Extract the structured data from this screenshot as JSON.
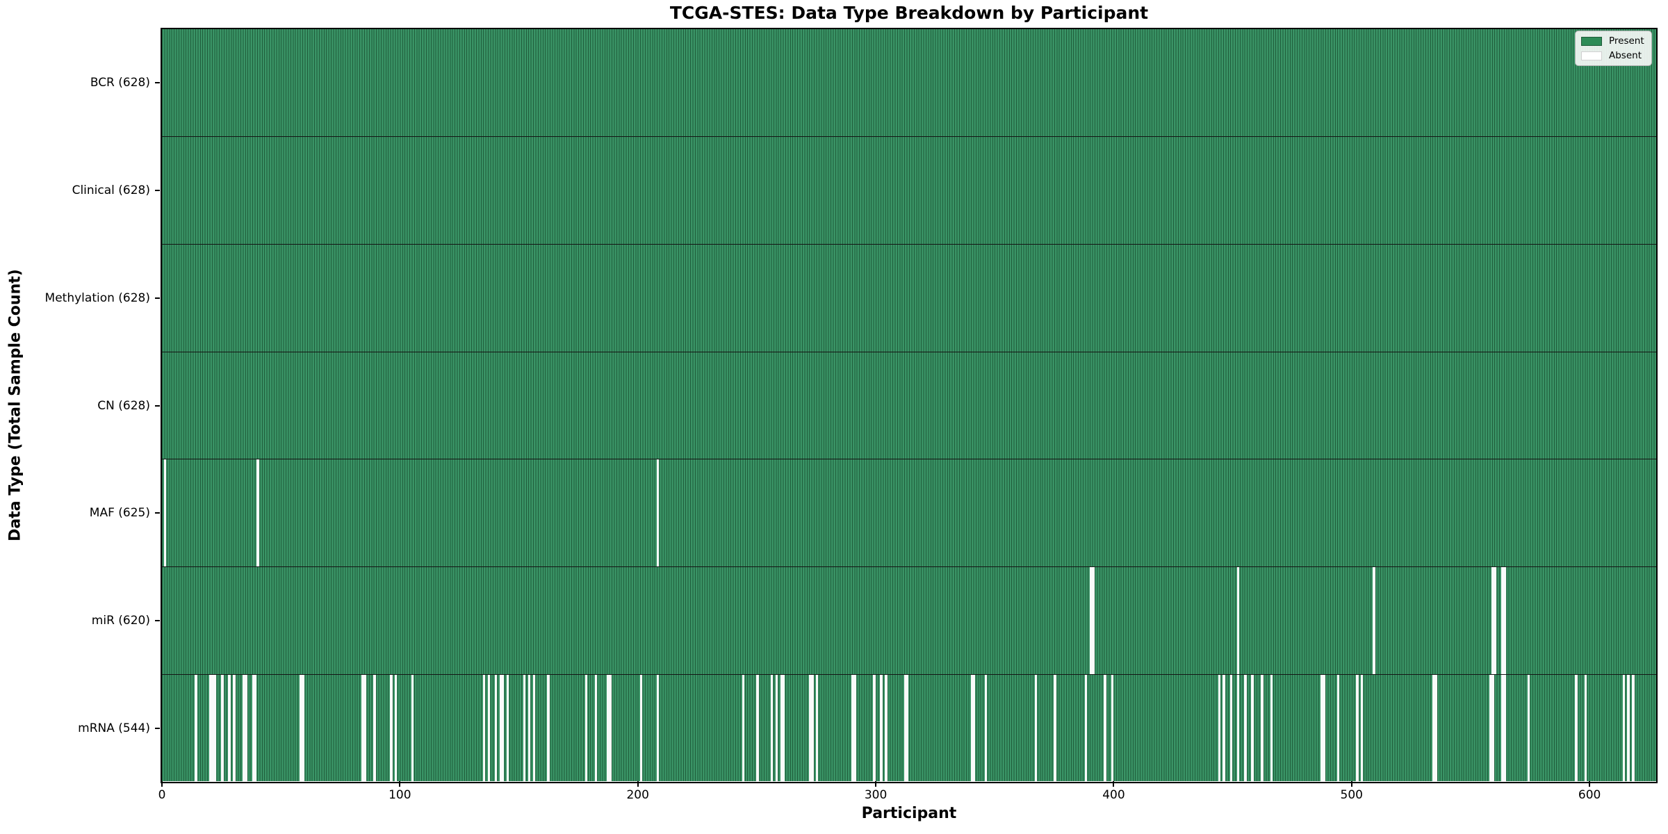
{
  "title": "TCGA-STES: Data Type Breakdown by Participant",
  "xlabel": "Participant",
  "ylabel": "Data Type (Total Sample Count)",
  "legend": {
    "present_label": "Present",
    "absent_label": "Absent"
  },
  "colors": {
    "present_fill": "#3a9466",
    "present_edge": "#1f5c3a",
    "present_legend": "#2e8b57",
    "absent": "#fafafa",
    "background": "#ffffff",
    "spine": "#000000"
  },
  "chart_data": {
    "type": "heatmap",
    "title": "TCGA-STES: Data Type Breakdown by Participant",
    "xlabel": "Participant",
    "ylabel": "Data Type (Total Sample Count)",
    "legend_entries": [
      "Present",
      "Absent"
    ],
    "legend_position": "upper right",
    "n_participants": 628,
    "x_range": [
      0,
      628
    ],
    "x_ticks": [
      0,
      100,
      200,
      300,
      400,
      500,
      600
    ],
    "cell_states": [
      "present",
      "absent"
    ],
    "rows": [
      {
        "name": "BCR",
        "label": "BCR (628)",
        "count": 628,
        "absent": []
      },
      {
        "name": "Clinical",
        "label": "Clinical (628)",
        "count": 628,
        "absent": []
      },
      {
        "name": "Methylation",
        "label": "Methylation (628)",
        "count": 628,
        "absent": []
      },
      {
        "name": "CN",
        "label": "CN (628)",
        "count": 628,
        "absent": []
      },
      {
        "name": "MAF",
        "label": "MAF (625)",
        "count": 625,
        "absent": [
          1,
          40,
          208
        ]
      },
      {
        "name": "miR",
        "label": "miR (620)",
        "count": 620,
        "absent": [
          390,
          391,
          452,
          509,
          559,
          560,
          563,
          564
        ]
      },
      {
        "name": "mRNA",
        "label": "mRNA (544)",
        "count": 544,
        "absent": [
          14,
          20,
          21,
          22,
          25,
          28,
          30,
          34,
          35,
          38,
          39,
          58,
          59,
          84,
          85,
          89,
          96,
          98,
          105,
          135,
          137,
          140,
          142,
          143,
          145,
          152,
          154,
          156,
          162,
          178,
          182,
          187,
          188,
          201,
          208,
          244,
          250,
          256,
          258,
          260,
          261,
          272,
          273,
          275,
          290,
          291,
          299,
          302,
          304,
          312,
          313,
          340,
          341,
          346,
          367,
          375,
          388,
          396,
          399,
          444,
          446,
          449,
          452,
          455,
          458,
          462,
          466,
          487,
          488,
          494,
          502,
          504,
          534,
          535,
          558,
          559,
          563,
          564,
          574,
          594,
          598,
          614,
          616,
          618
        ]
      }
    ]
  }
}
